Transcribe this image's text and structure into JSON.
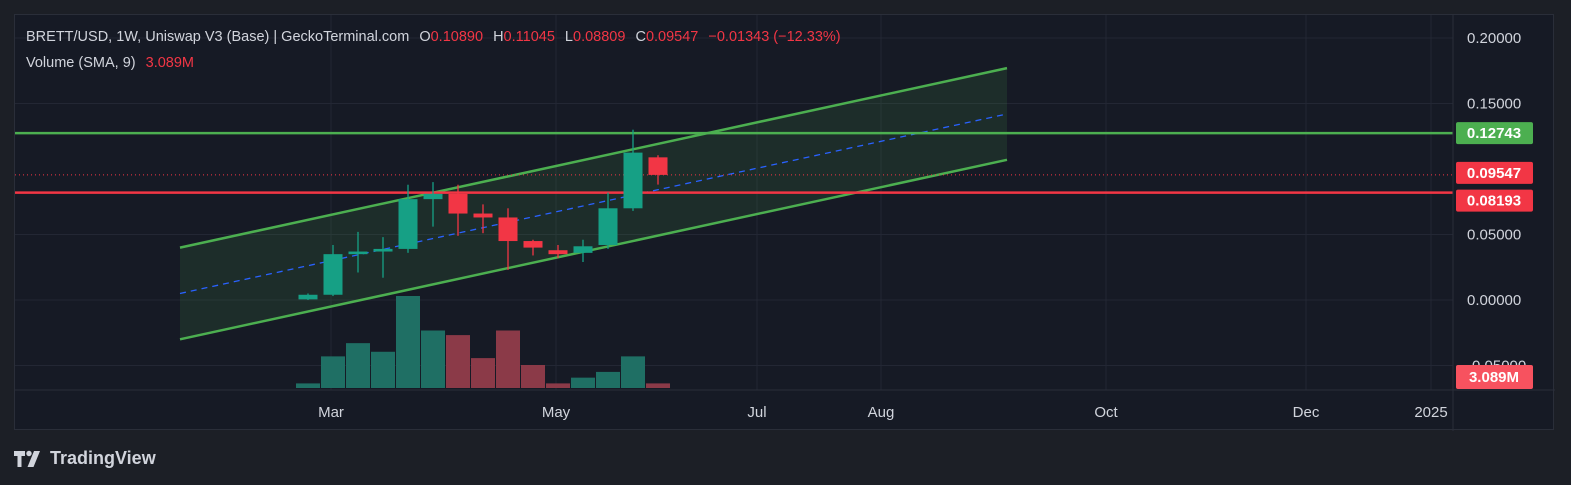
{
  "legend": {
    "symbol": "BRETT/USD, 1W, Uniswap V3 (Base) | GeckoTerminal.com",
    "o_label": "O",
    "o_value": "0.10890",
    "h_label": "H",
    "h_value": "0.11045",
    "l_label": "L",
    "l_value": "0.08809",
    "c_label": "C",
    "c_value": "0.09547",
    "change": "−0.01343 (−12.33%)",
    "volume_label": "Volume (SMA, 9)",
    "volume_value": "3.089M"
  },
  "brand": {
    "name": "TradingView"
  },
  "colors": {
    "up": "#16a085",
    "down": "#f23645",
    "vol_up": "#1f6f64",
    "vol_down": "#8b3a48",
    "channel": "#4caf50",
    "midline": "#2962ff",
    "resistance": "#4caf50",
    "support": "#f23645"
  },
  "chart_data": {
    "type": "candlestick",
    "x_ticks": [
      "Mar",
      "May",
      "Jul",
      "Aug",
      "Oct",
      "Dec",
      "2025"
    ],
    "y_ticks": [
      "0.20000",
      "0.15000",
      "0.05000",
      "0.00000",
      "-0.05000"
    ],
    "ylim": [
      -0.068,
      0.21
    ],
    "candles": [
      {
        "o": 0.0005,
        "h": 0.005,
        "l": 0.0,
        "c": 0.004
      },
      {
        "o": 0.004,
        "h": 0.042,
        "l": 0.003,
        "c": 0.035
      },
      {
        "o": 0.035,
        "h": 0.052,
        "l": 0.021,
        "c": 0.037
      },
      {
        "o": 0.037,
        "h": 0.048,
        "l": 0.017,
        "c": 0.039
      },
      {
        "o": 0.039,
        "h": 0.088,
        "l": 0.036,
        "c": 0.077
      },
      {
        "o": 0.077,
        "h": 0.09,
        "l": 0.056,
        "c": 0.081
      },
      {
        "o": 0.081,
        "h": 0.088,
        "l": 0.049,
        "c": 0.066
      },
      {
        "o": 0.066,
        "h": 0.073,
        "l": 0.051,
        "c": 0.063
      },
      {
        "o": 0.063,
        "h": 0.07,
        "l": 0.023,
        "c": 0.045
      },
      {
        "o": 0.045,
        "h": 0.046,
        "l": 0.034,
        "c": 0.04
      },
      {
        "o": 0.038,
        "h": 0.042,
        "l": 0.032,
        "c": 0.035
      },
      {
        "o": 0.036,
        "h": 0.046,
        "l": 0.029,
        "c": 0.041
      },
      {
        "o": 0.042,
        "h": 0.082,
        "l": 0.039,
        "c": 0.07
      },
      {
        "o": 0.07,
        "h": 0.13,
        "l": 0.068,
        "c": 0.1125
      },
      {
        "o": 0.1089,
        "h": 0.1105,
        "l": 0.0881,
        "c": 0.0955
      }
    ],
    "volumes": [
      0.08,
      0.55,
      0.78,
      0.63,
      1.6,
      1.0,
      0.92,
      0.52,
      1.0,
      0.4,
      0.08,
      0.18,
      0.28,
      0.55,
      0.08
    ],
    "volume_max": 1.6,
    "channel": {
      "upper_start": 0.04,
      "upper_end": 0.177,
      "lower_start": -0.03,
      "lower_end": 0.107
    },
    "lines": {
      "resistance": 0.12743,
      "support": 0.08193,
      "last_price": 0.09547
    },
    "price_labels": {
      "resistance": "0.12743",
      "last_price": "0.09547",
      "support": "0.08193",
      "volume": "3.089M"
    }
  }
}
